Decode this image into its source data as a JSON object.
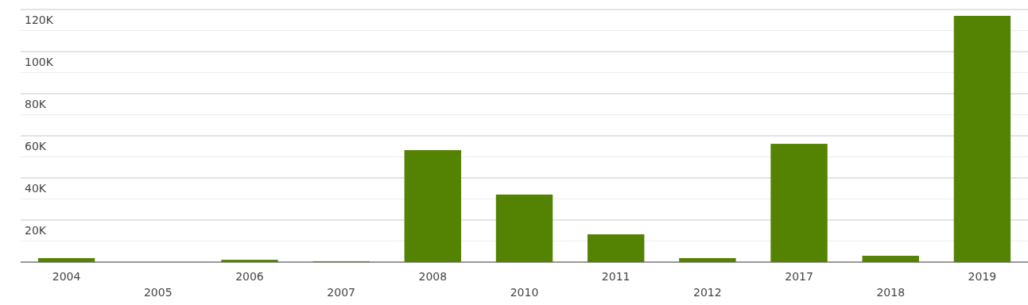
{
  "chart_data": {
    "type": "bar",
    "categories": [
      "2004",
      "2005",
      "2006",
      "2007",
      "2008",
      "2010",
      "2011",
      "2012",
      "2017",
      "2018",
      "2019"
    ],
    "values": [
      1900,
      0,
      1100,
      400,
      53200,
      32100,
      13200,
      1900,
      56200,
      3000,
      117000
    ],
    "color": "#548203",
    "ylim": [
      0,
      120000
    ],
    "yticks": [
      {
        "value": 10000,
        "label": null
      },
      {
        "value": 20000,
        "label": "20K"
      },
      {
        "value": 30000,
        "label": null
      },
      {
        "value": 40000,
        "label": "40K"
      },
      {
        "value": 50000,
        "label": null
      },
      {
        "value": 60000,
        "label": "60K"
      },
      {
        "value": 70000,
        "label": null
      },
      {
        "value": 80000,
        "label": "80K"
      },
      {
        "value": 90000,
        "label": null
      },
      {
        "value": 100000,
        "label": "100K"
      },
      {
        "value": 110000,
        "label": null
      },
      {
        "value": 120000,
        "label": "120K"
      }
    ],
    "grid": true
  }
}
